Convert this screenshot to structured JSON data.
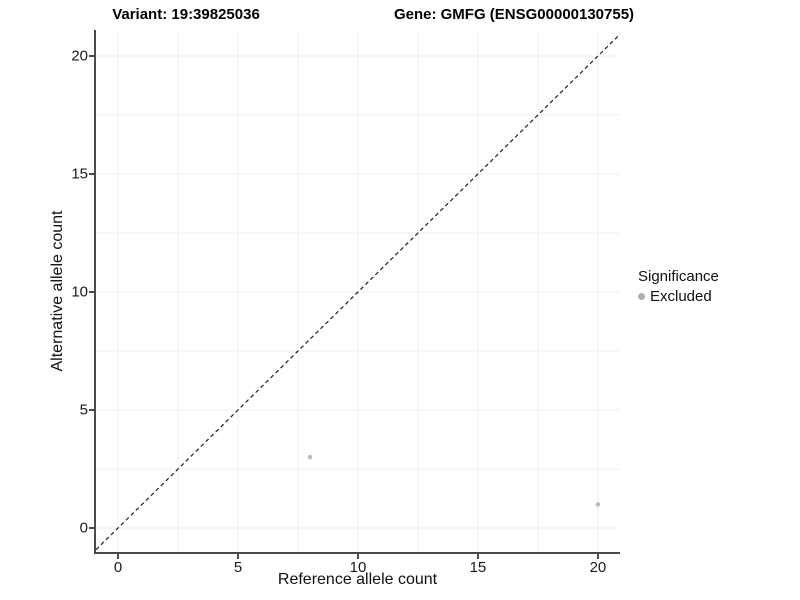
{
  "titles": {
    "variant": "Variant: 19:39825036",
    "gene": "Gene: GMFG (ENSG00000130755)"
  },
  "legend": {
    "title": "Significance",
    "items": [
      {
        "label": "Excluded",
        "color": "#adadad"
      }
    ]
  },
  "colors": {
    "point": "#bdbdbd",
    "grid": "#efefef",
    "axis": "#4a4a4a",
    "tick": "#4a4a4a",
    "dashed_line": "#1f1f1f",
    "text": "#1a1a1a"
  },
  "chart_data": {
    "type": "scatter",
    "title": "Variant: 19:39825036 | Gene: GMFG (ENSG00000130755)",
    "xlabel": "Reference allele count",
    "ylabel": "Alternative allele count",
    "xlim": [
      -0.96,
      20.92
    ],
    "ylim": [
      -1.06,
      21.1
    ],
    "xticks": [
      0,
      5,
      10,
      15,
      20
    ],
    "yticks": [
      0,
      5,
      10,
      15,
      20
    ],
    "minor_xticks": [
      2.5,
      7.5,
      12.5,
      17.5
    ],
    "minor_yticks": [
      2.5,
      7.5,
      12.5,
      17.5
    ],
    "grid": true,
    "legend_position": "right",
    "series": [
      {
        "name": "Excluded",
        "color": "#bdbdbd",
        "points": [
          {
            "x": 8,
            "y": 3
          },
          {
            "x": 20,
            "y": 1
          }
        ]
      }
    ],
    "reference_line": {
      "kind": "identity",
      "slope": 1,
      "intercept": 0,
      "style": "dashed",
      "color": "#1f1f1f"
    }
  }
}
